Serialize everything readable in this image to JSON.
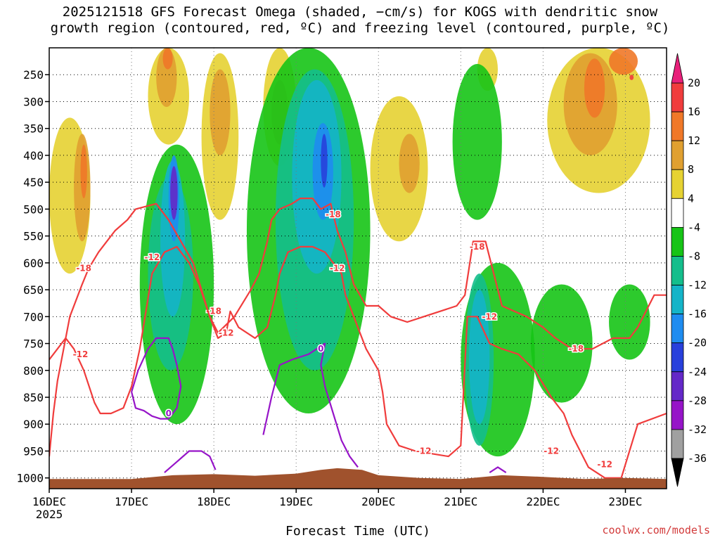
{
  "title": "2025121518 GFS Forecast Omega (shaded, −cm/s) for KOGS with dendritic snow\ngrowth region (contoured, red, ºC) and freezing level (contoured, purple, ºC)",
  "credit": "coolwx.com/models",
  "chart_data": {
    "type": "heatmap",
    "xlabel": "Forecast Time (UTC)",
    "ylabel": "",
    "x_ticks": [
      "16DEC",
      "17DEC",
      "18DEC",
      "19DEC",
      "20DEC",
      "21DEC",
      "22DEC",
      "23DEC"
    ],
    "x_sublabel": "2025",
    "x_range_days": [
      0,
      7.5
    ],
    "y_ticks": [
      250,
      300,
      350,
      400,
      450,
      500,
      550,
      600,
      650,
      700,
      750,
      800,
      850,
      900,
      950,
      1000
    ],
    "y_range_hpa": [
      200,
      1020
    ],
    "colorbar": {
      "levels": [
        20,
        16,
        12,
        8,
        4,
        -4,
        -8,
        -12,
        -16,
        -20,
        -24,
        -28,
        -32,
        -36
      ],
      "colors": {
        "gt20": "#e8207a",
        "16_20": "#f03c3c",
        "12_16": "#f07828",
        "8_12": "#e0a030",
        "4_8": "#e6d232",
        "m4_4": "#ffffff",
        "m8_m4": "#16c416",
        "m12_m8": "#14be8c",
        "m16_m12": "#14b4c8",
        "m20_m16": "#1e8cf0",
        "m24_m20": "#2840dc",
        "m28_m24": "#6428c8",
        "m32_m28": "#9614c8",
        "m36_m32": "#a0a0a0",
        "lt_m36": "#000000"
      }
    },
    "shading_regions": [
      {
        "level": "m4_4",
        "days": [
          0.0,
          7.5
        ],
        "p": [
          200,
          1000
        ]
      },
      {
        "level": "4_8",
        "days": [
          0.0,
          0.5
        ],
        "p": [
          330,
          620
        ]
      },
      {
        "level": "8_12",
        "days": [
          0.3,
          0.5
        ],
        "p": [
          360,
          560
        ]
      },
      {
        "level": "12_16",
        "days": [
          0.38,
          0.46
        ],
        "p": [
          380,
          480
        ]
      },
      {
        "level": "4_8",
        "days": [
          1.2,
          1.7
        ],
        "p": [
          200,
          380
        ]
      },
      {
        "level": "8_12",
        "days": [
          1.3,
          1.55
        ],
        "p": [
          200,
          310
        ]
      },
      {
        "level": "12_16",
        "days": [
          1.38,
          1.5
        ],
        "p": [
          200,
          240
        ]
      },
      {
        "level": "4_8",
        "days": [
          1.85,
          2.3
        ],
        "p": [
          210,
          520
        ]
      },
      {
        "level": "8_12",
        "days": [
          1.95,
          2.2
        ],
        "p": [
          240,
          400
        ]
      },
      {
        "level": "4_8",
        "days": [
          2.6,
          3.0
        ],
        "p": [
          200,
          420
        ]
      },
      {
        "level": "8_12",
        "days": [
          2.7,
          2.9
        ],
        "p": [
          260,
          380
        ]
      },
      {
        "level": "4_8",
        "days": [
          3.9,
          4.6
        ],
        "p": [
          290,
          560
        ]
      },
      {
        "level": "8_12",
        "days": [
          4.25,
          4.5
        ],
        "p": [
          360,
          470
        ]
      },
      {
        "level": "4_8",
        "days": [
          5.2,
          5.45
        ],
        "p": [
          200,
          280
        ]
      },
      {
        "level": "4_8",
        "days": [
          6.05,
          7.3
        ],
        "p": [
          200,
          470
        ]
      },
      {
        "level": "8_12",
        "days": [
          6.25,
          6.9
        ],
        "p": [
          210,
          400
        ]
      },
      {
        "level": "12_16",
        "days": [
          6.5,
          6.75
        ],
        "p": [
          220,
          330
        ]
      },
      {
        "level": "12_16",
        "days": [
          6.8,
          7.15
        ],
        "p": [
          200,
          250
        ]
      },
      {
        "level": "16_20",
        "days": [
          7.05,
          7.1
        ],
        "p": [
          250,
          260
        ]
      },
      {
        "level": "m8_m4",
        "days": [
          1.1,
          2.0
        ],
        "p": [
          380,
          900
        ]
      },
      {
        "level": "m12_m8",
        "days": [
          1.2,
          1.75
        ],
        "p": [
          440,
          800
        ]
      },
      {
        "level": "m16_m12",
        "days": [
          1.35,
          1.65
        ],
        "p": [
          410,
          700
        ]
      },
      {
        "level": "m20_m16",
        "days": [
          1.45,
          1.58
        ],
        "p": [
          400,
          560
        ]
      },
      {
        "level": "m28_m24",
        "days": [
          1.47,
          1.56
        ],
        "p": [
          420,
          520
        ]
      },
      {
        "level": "m8_m4",
        "days": [
          2.4,
          3.9
        ],
        "p": [
          200,
          880
        ]
      },
      {
        "level": "m12_m8",
        "days": [
          2.75,
          3.7
        ],
        "p": [
          240,
          800
        ]
      },
      {
        "level": "m16_m12",
        "days": [
          2.95,
          3.55
        ],
        "p": [
          260,
          620
        ]
      },
      {
        "level": "m20_m16",
        "days": [
          3.2,
          3.45
        ],
        "p": [
          340,
          520
        ]
      },
      {
        "level": "m24_m20",
        "days": [
          3.3,
          3.38
        ],
        "p": [
          360,
          460
        ]
      },
      {
        "level": "m8_m4",
        "days": [
          4.9,
          5.5
        ],
        "p": [
          230,
          520
        ]
      },
      {
        "level": "m8_m4",
        "days": [
          5.0,
          5.9
        ],
        "p": [
          600,
          960
        ]
      },
      {
        "level": "m12_m8",
        "days": [
          5.05,
          5.4
        ],
        "p": [
          620,
          940
        ]
      },
      {
        "level": "m16_m12",
        "days": [
          5.1,
          5.35
        ],
        "p": [
          650,
          900
        ]
      },
      {
        "level": "m8_m4",
        "days": [
          5.85,
          6.6
        ],
        "p": [
          640,
          860
        ]
      },
      {
        "level": "m8_m4",
        "days": [
          6.8,
          7.3
        ],
        "p": [
          640,
          780
        ]
      }
    ],
    "series": [
      {
        "name": "-18",
        "color": "#f03c3c",
        "x": [
          0.0,
          0.05,
          0.1,
          0.25,
          0.4,
          0.48,
          0.52,
          0.6,
          0.7,
          0.8,
          0.95,
          1.05,
          1.3,
          1.45,
          1.6,
          1.75,
          1.85,
          1.95,
          2.05,
          2.25,
          2.45,
          2.55,
          2.65,
          2.7,
          2.8,
          2.95,
          3.05,
          3.2,
          3.3,
          3.42,
          3.45,
          3.5,
          3.6,
          3.7,
          3.85,
          4.0,
          4.15,
          4.35,
          4.55,
          4.75,
          4.95,
          5.05,
          5.15,
          5.3,
          5.5,
          5.8,
          6.0,
          6.15,
          6.35,
          6.6,
          6.85,
          7.05,
          7.15,
          7.35,
          7.5
        ],
        "y": [
          960,
          880,
          820,
          700,
          640,
          610,
          600,
          580,
          560,
          540,
          520,
          500,
          490,
          520,
          560,
          600,
          650,
          700,
          730,
          700,
          650,
          620,
          560,
          520,
          500,
          490,
          480,
          480,
          500,
          490,
          510,
          540,
          580,
          640,
          680,
          680,
          700,
          710,
          700,
          690,
          680,
          660,
          560,
          560,
          680,
          700,
          720,
          740,
          760,
          760,
          740,
          740,
          720,
          660,
          660
        ],
        "labels": [
          {
            "text": "-18",
            "x": 0.42,
            "p": 610
          },
          {
            "text": "-18",
            "x": 2.0,
            "p": 690
          },
          {
            "text": "-18",
            "x": 3.45,
            "p": 510
          },
          {
            "text": "-18",
            "x": 5.2,
            "p": 570
          },
          {
            "text": "-18",
            "x": 6.4,
            "p": 760
          }
        ]
      },
      {
        "name": "-12",
        "color": "#f03c3c",
        "x": [
          0.0,
          0.1,
          0.2,
          0.3,
          0.42,
          0.55,
          0.62,
          0.75,
          0.9,
          1.0,
          1.1,
          1.25,
          1.4,
          1.55,
          1.7,
          1.82,
          1.95,
          2.05,
          2.15,
          2.2,
          2.3,
          2.5,
          2.65,
          2.75,
          2.8,
          2.9,
          3.05,
          3.2,
          3.35,
          3.45,
          3.55,
          3.6,
          3.7,
          3.85,
          4.0,
          4.05,
          4.1,
          4.25,
          4.45,
          4.65,
          4.85,
          5.0,
          5.08,
          5.2,
          5.35,
          5.5,
          5.7,
          5.9,
          6.1,
          6.25,
          6.35,
          6.55,
          6.75,
          6.95,
          7.15,
          7.5
        ],
        "y": [
          780,
          760,
          740,
          760,
          800,
          860,
          880,
          880,
          870,
          830,
          760,
          620,
          580,
          570,
          600,
          640,
          700,
          740,
          730,
          690,
          720,
          740,
          720,
          660,
          620,
          580,
          570,
          570,
          580,
          600,
          620,
          660,
          700,
          760,
          800,
          840,
          900,
          940,
          950,
          955,
          960,
          940,
          700,
          700,
          750,
          760,
          770,
          800,
          850,
          880,
          920,
          980,
          1000,
          1000,
          900,
          880
        ],
        "labels": [
          {
            "text": "-12",
            "x": 0.38,
            "p": 770
          },
          {
            "text": "-12",
            "x": 1.25,
            "p": 590
          },
          {
            "text": "-12",
            "x": 2.15,
            "p": 730
          },
          {
            "text": "-12",
            "x": 3.5,
            "p": 610
          },
          {
            "text": "-12",
            "x": 4.55,
            "p": 950
          },
          {
            "text": "-12",
            "x": 5.35,
            "p": 700
          },
          {
            "text": "-12",
            "x": 6.1,
            "p": 950
          },
          {
            "text": "-12",
            "x": 6.75,
            "p": 975
          }
        ]
      },
      {
        "name": "0",
        "color": "#9614c8",
        "x": [
          1.0,
          1.08,
          1.2,
          1.3,
          1.45,
          1.5,
          1.55,
          1.6,
          1.55,
          1.45,
          1.35,
          1.25,
          1.15,
          1.05,
          1.0
        ],
        "y": [
          840,
          800,
          760,
          740,
          740,
          760,
          790,
          830,
          870,
          890,
          890,
          885,
          875,
          870,
          840
        ],
        "labels": [
          {
            "text": "0",
            "x": 1.45,
            "p": 880
          }
        ]
      },
      {
        "name": "0b",
        "color": "#9614c8",
        "x": [
          2.6,
          2.7,
          2.8,
          2.95,
          3.15,
          3.25,
          3.35,
          3.3,
          3.35,
          3.45,
          3.55,
          3.65,
          3.75
        ],
        "y": [
          920,
          850,
          790,
          780,
          770,
          760,
          750,
          790,
          830,
          880,
          930,
          960,
          980
        ],
        "labels": [
          {
            "text": "0",
            "x": 3.3,
            "p": 760
          }
        ]
      },
      {
        "name": "0c",
        "color": "#9614c8",
        "x": [
          1.4,
          1.55,
          1.7,
          1.85,
          1.95,
          2.02
        ],
        "y": [
          990,
          970,
          950,
          950,
          960,
          985
        ],
        "labels": []
      },
      {
        "name": "0d",
        "color": "#9614c8",
        "x": [
          5.35,
          5.45,
          5.55
        ],
        "y": [
          990,
          980,
          990
        ],
        "labels": []
      }
    ],
    "terrain": {
      "color": "#a0522d",
      "x": [
        0.0,
        1.0,
        1.5,
        2.0,
        2.5,
        3.0,
        3.3,
        3.5,
        3.8,
        4.0,
        4.5,
        5.0,
        5.5,
        6.0,
        6.5,
        7.0,
        7.5
      ],
      "p": [
        1002,
        1002,
        995,
        993,
        996,
        992,
        985,
        982,
        985,
        995,
        1000,
        1002,
        995,
        998,
        1002,
        1000,
        1002
      ]
    }
  }
}
